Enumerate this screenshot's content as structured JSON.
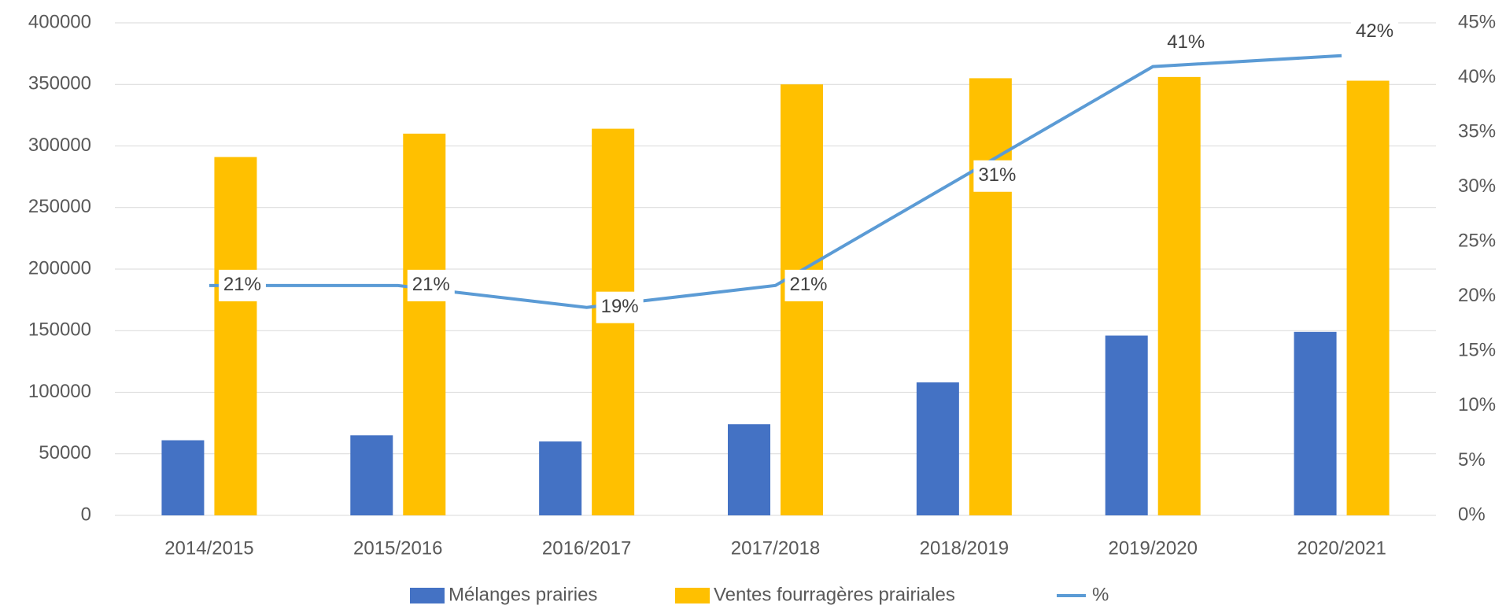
{
  "chart_data": {
    "type": "bar",
    "categories": [
      "2014/2015",
      "2015/2016",
      "2016/2017",
      "2017/2018",
      "2018/2019",
      "2019/2020",
      "2020/2021"
    ],
    "series": [
      {
        "name": "Mélanges prairies",
        "color": "#4472c4",
        "values": [
          61000,
          65000,
          60000,
          74000,
          108000,
          146000,
          149000
        ]
      },
      {
        "name": "Ventes fourragères prairiales",
        "color": "#ffc000",
        "values": [
          291000,
          310000,
          314000,
          350000,
          355000,
          356000,
          353000
        ]
      },
      {
        "name": "%",
        "color": "#5b9bd5",
        "type": "line",
        "axis": "y2",
        "values": [
          21,
          21,
          19,
          21,
          31,
          41,
          42
        ],
        "value_labels": [
          "21%",
          "21%",
          "19%",
          "21%",
          "31%",
          "41%",
          "42%"
        ]
      }
    ],
    "ylim": [
      0,
      400000
    ],
    "yticks": [
      0,
      50000,
      100000,
      150000,
      200000,
      250000,
      300000,
      350000,
      400000
    ],
    "y2lim": [
      0,
      45
    ],
    "y2ticks": [
      {
        "value": 0,
        "label": "0%"
      },
      {
        "value": 5,
        "label": "5%"
      },
      {
        "value": 10,
        "label": "10%"
      },
      {
        "value": 15,
        "label": "15%"
      },
      {
        "value": 20,
        "label": "20%"
      },
      {
        "value": 25,
        "label": "25%"
      },
      {
        "value": 30,
        "label": "30%"
      },
      {
        "value": 35,
        "label": "35%"
      },
      {
        "value": 40,
        "label": "40%"
      },
      {
        "value": 45,
        "label": "45%"
      }
    ],
    "grid": true,
    "legend": "bottom"
  }
}
